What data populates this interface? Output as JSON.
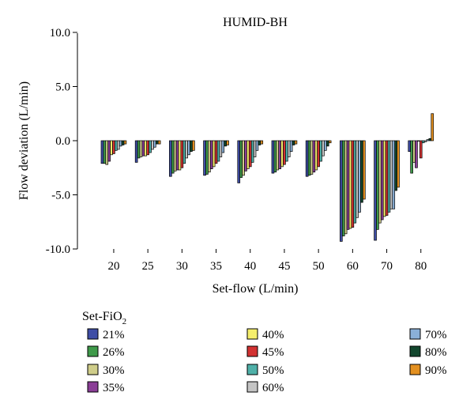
{
  "chart_data": {
    "type": "bar",
    "title": "HUMID-BH",
    "xlabel": "Set-flow (L/min)",
    "ylabel": "Flow deviation (L/min)",
    "ylim": [
      -10,
      10
    ],
    "yticks": [
      "10.0",
      "5.0",
      "0.0",
      "-5.0",
      "-10.0"
    ],
    "ytick_values": [
      10,
      5,
      0,
      -5,
      -10
    ],
    "categories": [
      "20",
      "25",
      "30",
      "35",
      "40",
      "45",
      "50",
      "60",
      "70",
      "80"
    ],
    "legend": {
      "title_main": "Set-FiO",
      "title_sub": "2",
      "placement": "bottom"
    },
    "series": [
      {
        "name": "21%",
        "color": "#3f4ea6",
        "values": [
          -2.1,
          -2.0,
          -3.3,
          -3.2,
          -3.9,
          -3.0,
          -3.3,
          -9.3,
          -9.2,
          -1.0
        ]
      },
      {
        "name": "26%",
        "color": "#3f9a4a",
        "values": [
          -2.1,
          -1.6,
          -3.0,
          -3.1,
          -3.4,
          -2.9,
          -3.2,
          -8.8,
          -8.2,
          -3.0
        ]
      },
      {
        "name": "30%",
        "color": "#cfcd8a",
        "values": [
          -2.2,
          -1.5,
          -2.8,
          -2.9,
          -3.2,
          -2.7,
          -3.1,
          -8.6,
          -7.6,
          -2.0
        ]
      },
      {
        "name": "35%",
        "color": "#8a3e96",
        "values": [
          -1.9,
          -1.4,
          -2.7,
          -2.6,
          -2.8,
          -2.6,
          -2.9,
          -8.2,
          -7.3,
          -2.5
        ]
      },
      {
        "name": "40%",
        "color": "#f5ee6c",
        "values": [
          -1.3,
          -1.4,
          -2.7,
          -2.4,
          -2.6,
          -2.4,
          -2.7,
          -8.1,
          -7.0,
          0
        ]
      },
      {
        "name": "45%",
        "color": "#d23232",
        "values": [
          -1.2,
          -1.3,
          -2.5,
          -2.1,
          -2.4,
          -2.2,
          -2.4,
          -8.0,
          -6.9,
          -1.6
        ]
      },
      {
        "name": "50%",
        "color": "#4fb0a8",
        "values": [
          -0.9,
          -1.1,
          -2.1,
          -1.9,
          -2.0,
          -1.9,
          -1.9,
          -7.6,
          -6.6,
          -0.2
        ]
      },
      {
        "name": "60%",
        "color": "#c4c4c4",
        "values": [
          -0.8,
          -0.8,
          -1.6,
          -1.5,
          -1.5,
          -1.5,
          -1.4,
          -7.1,
          -6.3,
          -0.1
        ]
      },
      {
        "name": "70%",
        "color": "#8ab0d8",
        "values": [
          -0.5,
          -0.6,
          -1.3,
          -1.1,
          -0.9,
          -1.0,
          -0.9,
          -6.6,
          -6.3,
          0.1
        ]
      },
      {
        "name": "80%",
        "color": "#12472e",
        "values": [
          -0.4,
          -0.3,
          -1.0,
          -0.5,
          -0.4,
          -0.4,
          -0.5,
          -5.7,
          -4.6,
          0.2
        ]
      },
      {
        "name": "90%",
        "color": "#e39020",
        "values": [
          -0.3,
          -0.3,
          -0.9,
          -0.4,
          -0.3,
          -0.3,
          -0.2,
          -5.4,
          -4.3,
          2.5
        ]
      }
    ]
  }
}
